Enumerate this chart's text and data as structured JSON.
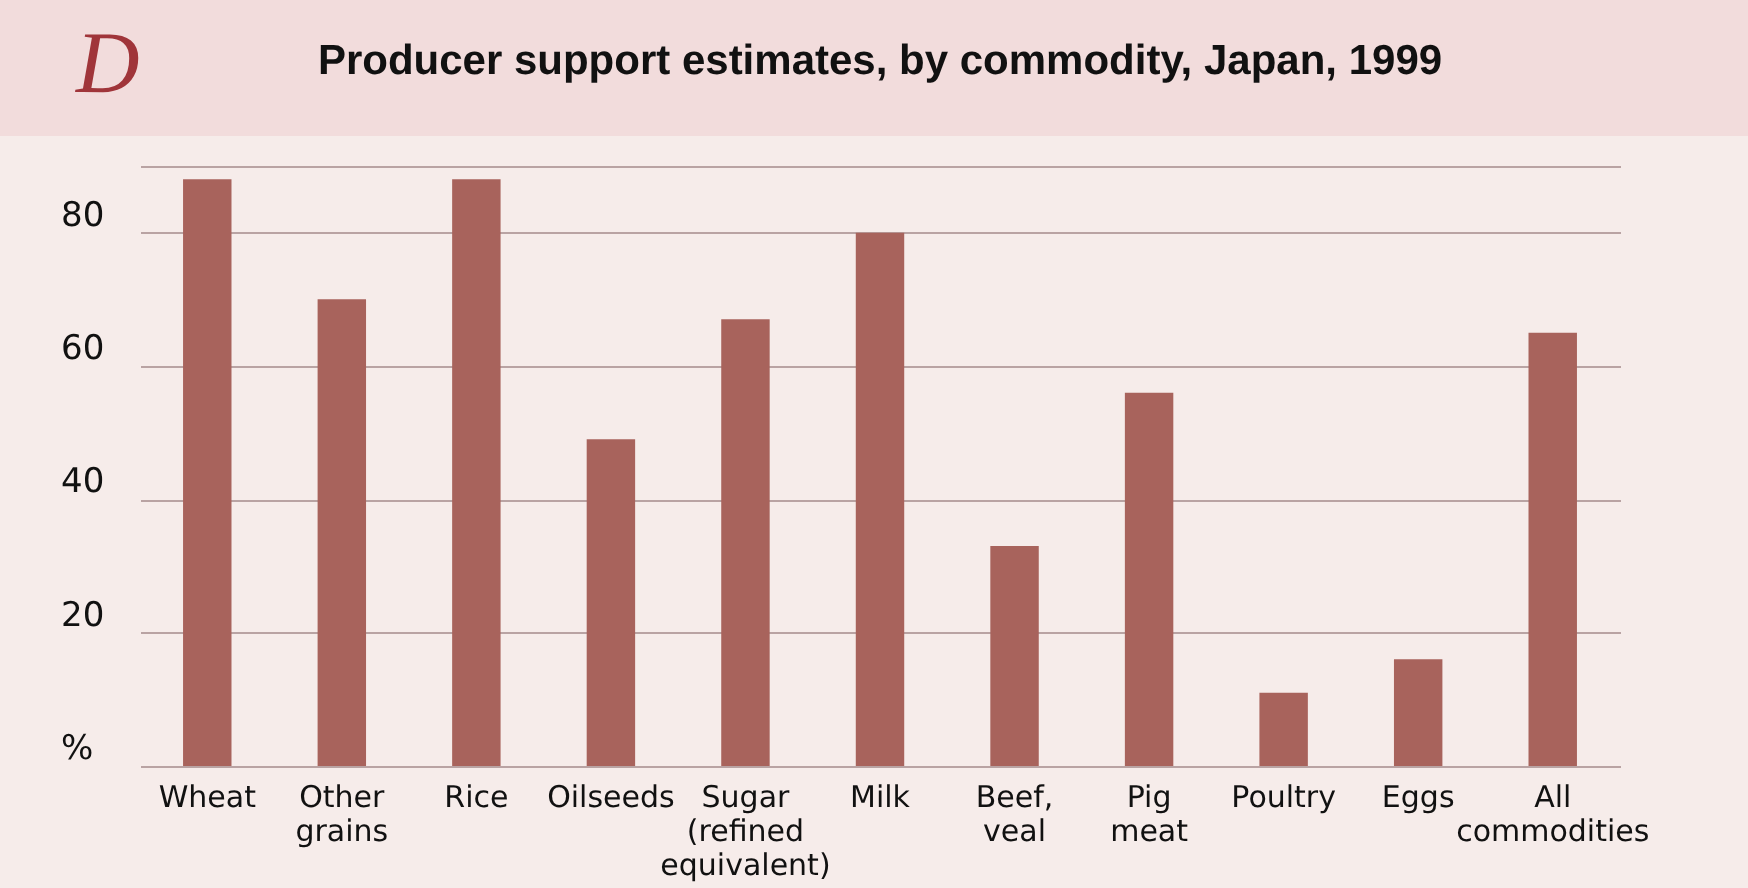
{
  "chart_data": {
    "type": "bar",
    "title": "Producer support estimates, by commodity, Japan, 1999",
    "annotations": [
      "D"
    ],
    "categories": [
      "Wheat",
      "Other grains",
      "Rice",
      "Oilseeds",
      "Sugar (refined equivalent)",
      "Milk",
      "Beef, veal",
      "Pig meat",
      "Poultry",
      "Eggs",
      "All commodities"
    ],
    "values": [
      88,
      70,
      88,
      49,
      67,
      80,
      33,
      56,
      11,
      16,
      65
    ],
    "color": "#a8635c",
    "ylim": [
      0,
      90
    ],
    "yticks": [
      {
        "value": 0,
        "label": "%"
      },
      20,
      40,
      60,
      80
    ],
    "grid": "y"
  }
}
